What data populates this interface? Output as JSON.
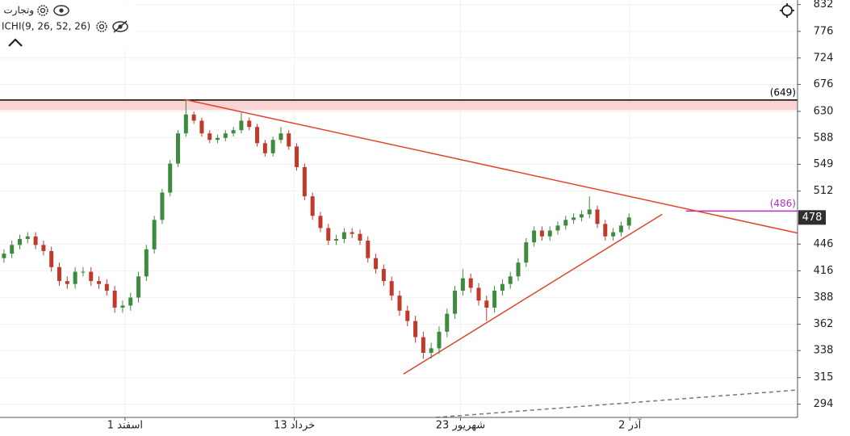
{
  "chart_data": {
    "type": "candlestick",
    "symbol": "وتجارت",
    "indicator": "ICHI(9, 26, 52, 26)",
    "log_scale": true,
    "grid": true,
    "xlim": [
      -0.5,
      100.3
    ],
    "xticks": [
      {
        "value": 15.3,
        "label": "1 اسفند"
      },
      {
        "value": 36.7,
        "label": "13 خرداد"
      },
      {
        "value": 57.7,
        "label": "23 شهریور"
      },
      {
        "value": 79.1,
        "label": "2 آذر"
      }
    ],
    "ylim": [
      284,
      842
    ],
    "yticks": [
      832,
      776,
      724,
      676,
      630,
      588,
      549,
      512,
      446,
      416,
      388,
      362,
      338,
      315,
      294
    ],
    "up_color": "#3d8b3d",
    "down_color": "#c0392b",
    "open": [
      430,
      435,
      445,
      452,
      455,
      445,
      438,
      420,
      405,
      402,
      415,
      415,
      405,
      402,
      395,
      378,
      380,
      388,
      410,
      440,
      475,
      510,
      550,
      595,
      625,
      615,
      595,
      585,
      588,
      595,
      600,
      615,
      605,
      580,
      565,
      585,
      595,
      575,
      545,
      505,
      480,
      465,
      450,
      452,
      460,
      458,
      450,
      430,
      418,
      405,
      390,
      375,
      365,
      350,
      336,
      340,
      355,
      372,
      395,
      408,
      398,
      385,
      378,
      395,
      402,
      410,
      425,
      448,
      462,
      455,
      462,
      468,
      475,
      478,
      482,
      488,
      470,
      455,
      460,
      468
    ],
    "high": [
      440,
      450,
      457,
      460,
      460,
      450,
      443,
      425,
      410,
      420,
      420,
      420,
      410,
      407,
      400,
      385,
      393,
      415,
      445,
      480,
      515,
      555,
      600,
      650,
      630,
      620,
      600,
      593,
      600,
      605,
      628,
      620,
      610,
      585,
      590,
      605,
      600,
      580,
      550,
      510,
      485,
      470,
      457,
      465,
      465,
      463,
      455,
      435,
      423,
      410,
      395,
      380,
      370,
      355,
      345,
      360,
      377,
      400,
      418,
      413,
      403,
      390,
      400,
      407,
      415,
      430,
      453,
      467,
      467,
      467,
      473,
      480,
      483,
      487,
      505,
      493,
      475,
      465,
      473,
      483
    ],
    "low": [
      425,
      430,
      440,
      447,
      440,
      433,
      415,
      400,
      397,
      397,
      410,
      400,
      397,
      390,
      373,
      373,
      375,
      383,
      405,
      435,
      470,
      505,
      545,
      590,
      610,
      590,
      580,
      580,
      583,
      590,
      595,
      600,
      575,
      560,
      560,
      580,
      570,
      540,
      500,
      475,
      460,
      445,
      445,
      447,
      453,
      445,
      425,
      413,
      400,
      385,
      370,
      360,
      345,
      331,
      331,
      335,
      350,
      367,
      390,
      393,
      380,
      365,
      373,
      390,
      397,
      405,
      420,
      443,
      450,
      450,
      457,
      463,
      470,
      473,
      477,
      465,
      450,
      450,
      455,
      463
    ],
    "close": [
      435,
      445,
      452,
      455,
      445,
      438,
      420,
      405,
      402,
      415,
      415,
      405,
      402,
      395,
      378,
      380,
      388,
      410,
      440,
      475,
      510,
      550,
      595,
      625,
      615,
      595,
      585,
      588,
      595,
      600,
      615,
      605,
      580,
      565,
      585,
      595,
      575,
      545,
      505,
      480,
      465,
      450,
      452,
      460,
      458,
      450,
      430,
      418,
      405,
      390,
      375,
      365,
      350,
      336,
      340,
      355,
      372,
      395,
      408,
      398,
      385,
      378,
      395,
      402,
      410,
      425,
      448,
      462,
      455,
      462,
      468,
      475,
      478,
      482,
      488,
      470,
      455,
      460,
      468,
      478
    ],
    "last_price": 478,
    "zone": {
      "low": 632,
      "high": 649,
      "color": "#fbd3d3"
    },
    "levels": [
      {
        "value": 649,
        "label": "(649)",
        "color": "#000000",
        "start": -0.5
      },
      {
        "value": 486,
        "label": "(486)",
        "color": "#b22fbf",
        "start": 86.2
      }
    ],
    "trendlines": [
      {
        "x": [
          22.8,
          100.3
        ],
        "y": [
          650,
          459
        ],
        "color": "#e0442c",
        "dashed": false
      },
      {
        "x": [
          50.5,
          83.2
        ],
        "y": [
          318,
          482
        ],
        "color": "#e0442c",
        "dashed": false
      },
      {
        "x": [
          54.6,
          100.3
        ],
        "y": [
          284,
          305
        ],
        "color": "#777777",
        "dashed": true
      }
    ]
  }
}
